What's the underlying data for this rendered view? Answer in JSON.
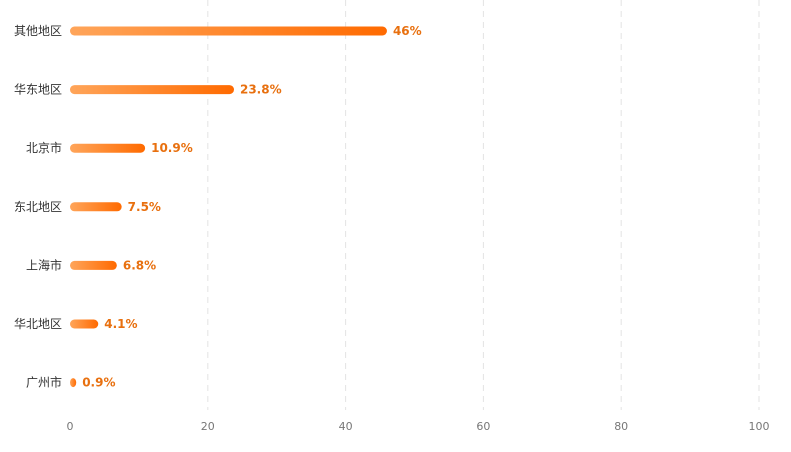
{
  "chart_data": {
    "type": "bar",
    "orientation": "horizontal",
    "categories": [
      "其他地区",
      "华东地区",
      "北京市",
      "东北地区",
      "上海市",
      "华北地区",
      "广州市"
    ],
    "values": [
      46,
      23.8,
      10.9,
      7.5,
      6.8,
      4.1,
      0.9
    ],
    "value_labels": [
      "46%",
      "23.8%",
      "10.9%",
      "7.5%",
      "6.8%",
      "4.1%",
      "0.9%"
    ],
    "xlim": [
      0,
      100
    ],
    "xticks": [
      0,
      20,
      40,
      60,
      80,
      100
    ],
    "xtick_labels": [
      "0",
      "20",
      "40",
      "60",
      "80",
      "100"
    ],
    "grid": "vertical dashed",
    "legend": "none",
    "colors": {
      "bar_start": "#ffa55a",
      "bar_end": "#ff6a00",
      "value_label": "#e8700f"
    }
  }
}
